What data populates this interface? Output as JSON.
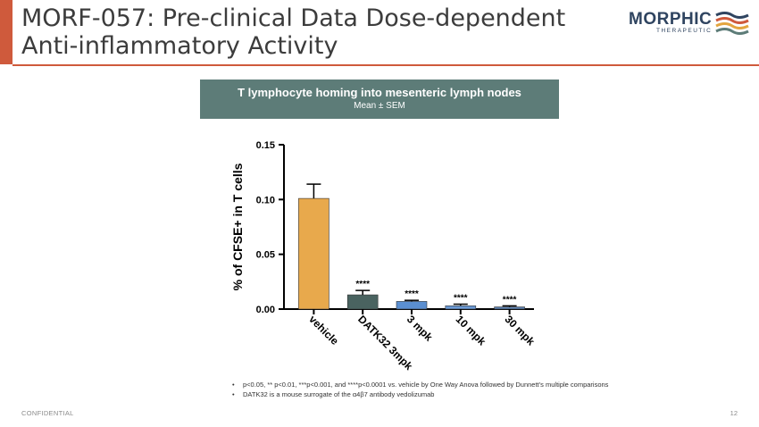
{
  "slide": {
    "title": "MORF-057: Pre-clinical Data Dose-dependent Anti-inflammatory Activity",
    "confidential": "CONFIDENTIAL",
    "page_number": "12",
    "accent_color": "#cf5a3c"
  },
  "logo": {
    "name": "MORPHIC",
    "subtitle": "THERAPEUTIC",
    "colors": [
      "#2f4460",
      "#cf5a3c",
      "#e3a53f",
      "#5d7c78"
    ]
  },
  "banner": {
    "title": "T lymphocyte homing into mesenteric lymph nodes",
    "subtitle": "Mean ± SEM",
    "color": "#5d7c78"
  },
  "chart_data": {
    "type": "bar",
    "categories": [
      "vehicle",
      "DATK32 3mpk",
      "3 mpk",
      "10 mpk",
      "30 mpk"
    ],
    "values": [
      0.101,
      0.013,
      0.007,
      0.003,
      0.002
    ],
    "errors": [
      0.013,
      0.004,
      0.001,
      0.0015,
      0.001
    ],
    "significance": [
      "",
      "****",
      "****",
      "****",
      "****"
    ],
    "colors": [
      "#e8a94c",
      "#4a6360",
      "#5b8fd1",
      "#6b9ad6",
      "#5b80b0"
    ],
    "ylabel": "% of CFSE+ in T cells",
    "xlabel": "",
    "ylim": [
      0,
      0.15
    ],
    "yticks": [
      "0.00",
      "0.05",
      "0.10",
      "0.15"
    ],
    "grid": false
  },
  "footnotes": [
    "p<0.05, ** p<0.01, ***p<0.001, and ****p<0.0001 vs. vehicle by One Way Anova followed by Dunnett’s multiple comparisons",
    "DATK32 is a mouse surrogate of the α4β7 antibody vedolizumab"
  ]
}
